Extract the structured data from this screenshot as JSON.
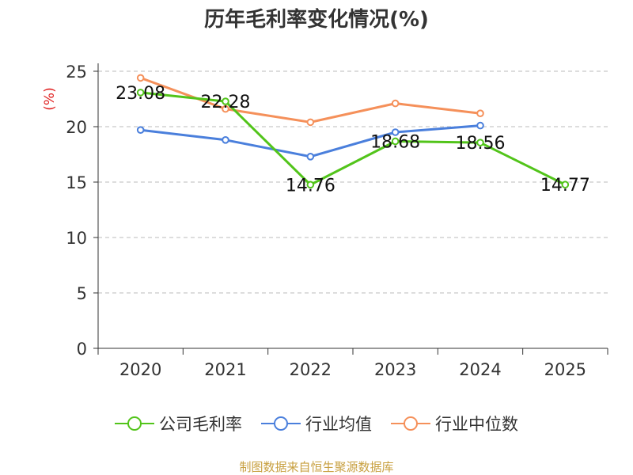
{
  "chart_data": {
    "type": "line",
    "title": "历年毛利率变化情况(%)",
    "ylabel": "(%)",
    "xlabel": "",
    "categories": [
      "2020",
      "2021",
      "2022",
      "2023",
      "2024",
      "2025"
    ],
    "ylim": [
      0,
      25
    ],
    "yticks": [
      0,
      5,
      10,
      15,
      20,
      25
    ],
    "grid": true,
    "legend_position": "bottom",
    "series": [
      {
        "name": "公司毛利率",
        "color": "#52c41a",
        "values": [
          23.08,
          22.28,
          14.76,
          18.68,
          18.56,
          14.77
        ],
        "labels": [
          "23.08",
          "22.28",
          "14.76",
          "18.68",
          "18.56",
          "14.77"
        ]
      },
      {
        "name": "行业均值",
        "color": "#4a7fdc",
        "values": [
          19.7,
          18.8,
          17.3,
          19.5,
          20.1,
          null
        ]
      },
      {
        "name": "行业中位数",
        "color": "#f5905a",
        "values": [
          24.4,
          21.6,
          20.4,
          22.1,
          21.2,
          null
        ]
      }
    ]
  },
  "footer": "制图数据来自恒生聚源数据库"
}
